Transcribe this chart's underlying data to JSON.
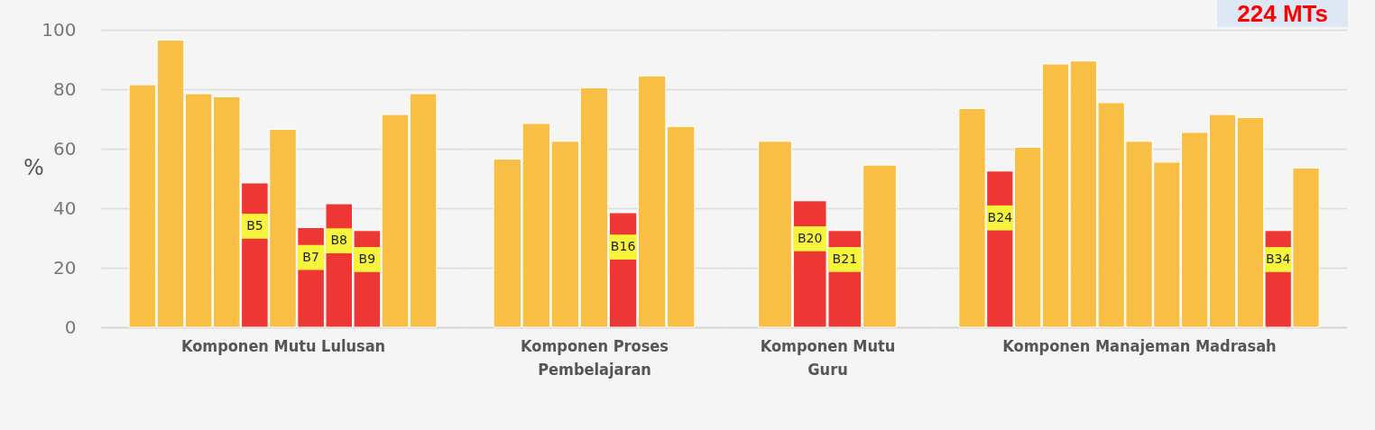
{
  "chart_data": [
    {
      "type": "bar",
      "xlabel": "Komponen Mutu Lulusan",
      "ylabel": "%",
      "categories": [
        null,
        null,
        null,
        null,
        null,
        null,
        null,
        null,
        null,
        null,
        null
      ],
      "values": [
        81.5,
        96.5,
        78.5,
        77.5,
        48.5,
        66.5,
        33.5,
        41.5,
        32.5,
        71.5,
        78.5
      ],
      "colors": [
        "#f9bf45",
        "#f9bf45",
        "#f9bf45",
        "#f9bf45",
        "#ee3734",
        "#f9bf45",
        "#ee3734",
        "#ee3734",
        "#ee3734",
        "#f9bf45",
        "#f9bf45"
      ],
      "value_labels": [
        null,
        null,
        null,
        null,
        "B5",
        null,
        "B7",
        "B8",
        "B9",
        null,
        null
      ],
      "ylim": [
        0,
        100
      ],
      "yticks": [
        0,
        20,
        40,
        60,
        80,
        100
      ],
      "grid": "y",
      "tick_labels": "y"
    },
    {
      "type": "bar",
      "xlabel": "Komponen Proses\nPembelajaran",
      "categories": [
        null,
        null,
        null,
        null,
        null,
        null,
        null
      ],
      "values": [
        56.5,
        68.5,
        62.5,
        80.5,
        38.5,
        84.5,
        67.5
      ],
      "colors": [
        "#f9bf45",
        "#f9bf45",
        "#f9bf45",
        "#f9bf45",
        "#ee3734",
        "#f9bf45",
        "#f9bf45"
      ],
      "value_labels": [
        null,
        null,
        null,
        null,
        "B16",
        null,
        null
      ],
      "ylim": [
        0,
        100
      ],
      "yticks": [
        0,
        20,
        40,
        60,
        80,
        100
      ],
      "grid": "y",
      "tick_labels": false
    },
    {
      "type": "bar",
      "xlabel": "Komponen Mutu\nGuru",
      "categories": [
        null,
        null,
        null,
        null
      ],
      "values": [
        62.5,
        42.5,
        32.5,
        54.5
      ],
      "colors": [
        "#f9bf45",
        "#ee3734",
        "#ee3734",
        "#f9bf45"
      ],
      "value_labels": [
        null,
        "B20",
        "B21",
        null
      ],
      "ylim": [
        0,
        100
      ],
      "yticks": [
        0,
        20,
        40,
        60,
        80,
        100
      ],
      "grid": "y",
      "tick_labels": false
    },
    {
      "type": "bar",
      "xlabel": "Komponen Manajeman Madrasah",
      "categories": [
        null,
        null,
        null,
        null,
        null,
        null,
        null,
        null,
        null,
        null,
        null,
        null,
        null
      ],
      "values": [
        73.5,
        52.5,
        60.5,
        88.5,
        89.5,
        75.5,
        62.5,
        55.5,
        65.5,
        71.5,
        70.5,
        32.5,
        53.5
      ],
      "colors": [
        "#f9bf45",
        "#ee3734",
        "#f9bf45",
        "#f9bf45",
        "#f9bf45",
        "#f9bf45",
        "#f9bf45",
        "#f9bf45",
        "#f9bf45",
        "#f9bf45",
        "#f9bf45",
        "#ee3734",
        "#f9bf45"
      ],
      "value_labels": [
        null,
        "B24",
        null,
        null,
        null,
        null,
        null,
        null,
        null,
        null,
        null,
        "B34",
        null
      ],
      "ylim": [
        0,
        100
      ],
      "yticks": [
        0,
        20,
        40,
        60,
        80,
        100
      ],
      "grid": "y",
      "tick_labels": false,
      "annotations": [
        "224 MTs"
      ]
    }
  ]
}
